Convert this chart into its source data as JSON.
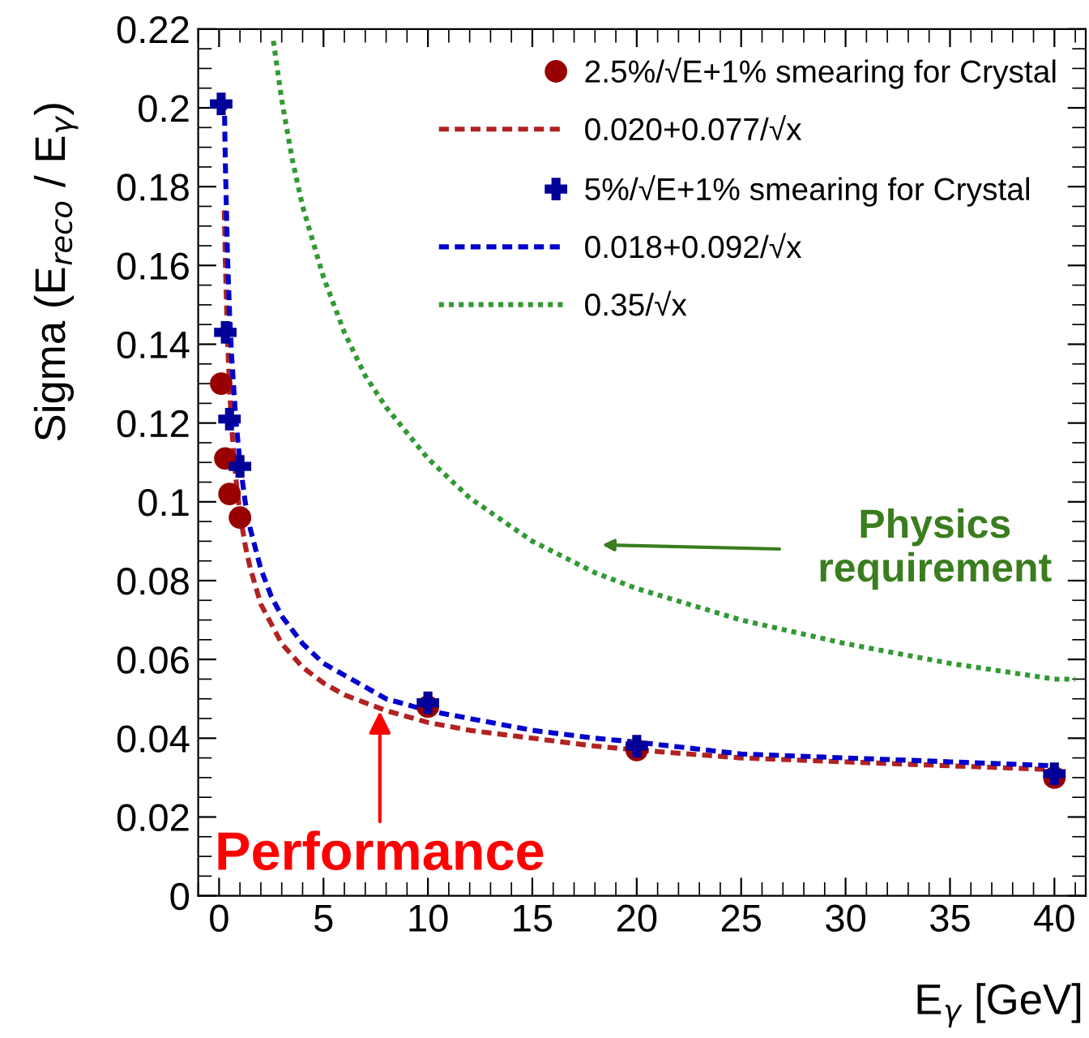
{
  "chart_data": {
    "type": "scatter",
    "xlabel": "E$_{γ}$ [GeV]",
    "ylabel": "Sigma (E$_{reco}$ / E$_{γ}$)",
    "xlim": [
      -1,
      41.5
    ],
    "ylim": [
      0,
      0.22
    ],
    "xticks": [
      0,
      5,
      10,
      15,
      20,
      25,
      30,
      35,
      40
    ],
    "yticks": [
      0,
      0.02,
      0.04,
      0.06,
      0.08,
      {
        "value": 0.1,
        "label": "0.1"
      },
      0.12,
      0.14,
      0.16,
      0.18,
      {
        "value": 0.2,
        "label": "0.2"
      },
      0.22
    ],
    "grid": false,
    "legend": "top right",
    "series": [
      {
        "name": "2.5%/√E+1% smearing for Crystal",
        "marker": "circle",
        "color": "#990000",
        "x": [
          0.1,
          0.3,
          0.5,
          1,
          10,
          20,
          40
        ],
        "values": [
          0.13,
          0.111,
          0.102,
          0.096,
          0.048,
          0.037,
          0.03
        ]
      },
      {
        "name": "0.020+0.077/√x",
        "type": "line",
        "line_style": "dashed",
        "color": "#b22222",
        "x": [
          0.25,
          0.3,
          0.4,
          0.5,
          0.6,
          0.8,
          1,
          1.25,
          1.5,
          2,
          2.5,
          3,
          4,
          5,
          6,
          7,
          8,
          10,
          12,
          15,
          18,
          20,
          25,
          30,
          35,
          40
        ],
        "values": [
          0.174,
          0.161,
          0.142,
          0.129,
          0.119,
          0.106,
          0.097,
          0.089,
          0.083,
          0.074,
          0.069,
          0.064,
          0.058,
          0.054,
          0.051,
          0.049,
          0.047,
          0.044,
          0.042,
          0.04,
          0.038,
          0.037,
          0.035,
          0.034,
          0.033,
          0.032
        ]
      },
      {
        "name": "5%/√E+1% smearing for Crystal",
        "marker": "cross",
        "color": "#000099",
        "x": [
          0.1,
          0.3,
          0.5,
          1,
          10,
          20,
          40
        ],
        "values": [
          0.201,
          0.143,
          0.121,
          0.109,
          0.049,
          0.038,
          0.031
        ]
      },
      {
        "name": "0.018+0.092/√x",
        "type": "line",
        "line_style": "dashed",
        "color": "#0000cc",
        "x": [
          0.25,
          0.3,
          0.4,
          0.5,
          0.6,
          0.8,
          1,
          1.25,
          1.5,
          2,
          2.5,
          3,
          4,
          5,
          6,
          7,
          8,
          10,
          12,
          15,
          18,
          20,
          25,
          30,
          35,
          40
        ],
        "values": [
          0.202,
          0.186,
          0.163,
          0.148,
          0.137,
          0.121,
          0.11,
          0.1,
          0.093,
          0.083,
          0.076,
          0.071,
          0.064,
          0.059,
          0.056,
          0.053,
          0.05,
          0.047,
          0.045,
          0.042,
          0.04,
          0.039,
          0.036,
          0.035,
          0.034,
          0.033
        ]
      },
      {
        "name": "0.35/√x",
        "type": "line",
        "line_style": "dotted",
        "color": "#339933",
        "x": [
          2.6,
          3,
          3.5,
          4,
          5,
          6,
          7,
          8,
          10,
          12,
          15,
          18,
          20,
          25,
          30,
          35,
          40,
          41
        ],
        "values": [
          0.217,
          0.202,
          0.187,
          0.175,
          0.157,
          0.143,
          0.132,
          0.124,
          0.111,
          0.101,
          0.09,
          0.082,
          0.078,
          0.07,
          0.064,
          0.059,
          0.055,
          0.055
        ]
      }
    ],
    "annotations": [
      "Physics\nrequirement",
      {
        "text": "Performance",
        "x": 7.7,
        "y": 0.048
      }
    ]
  }
}
